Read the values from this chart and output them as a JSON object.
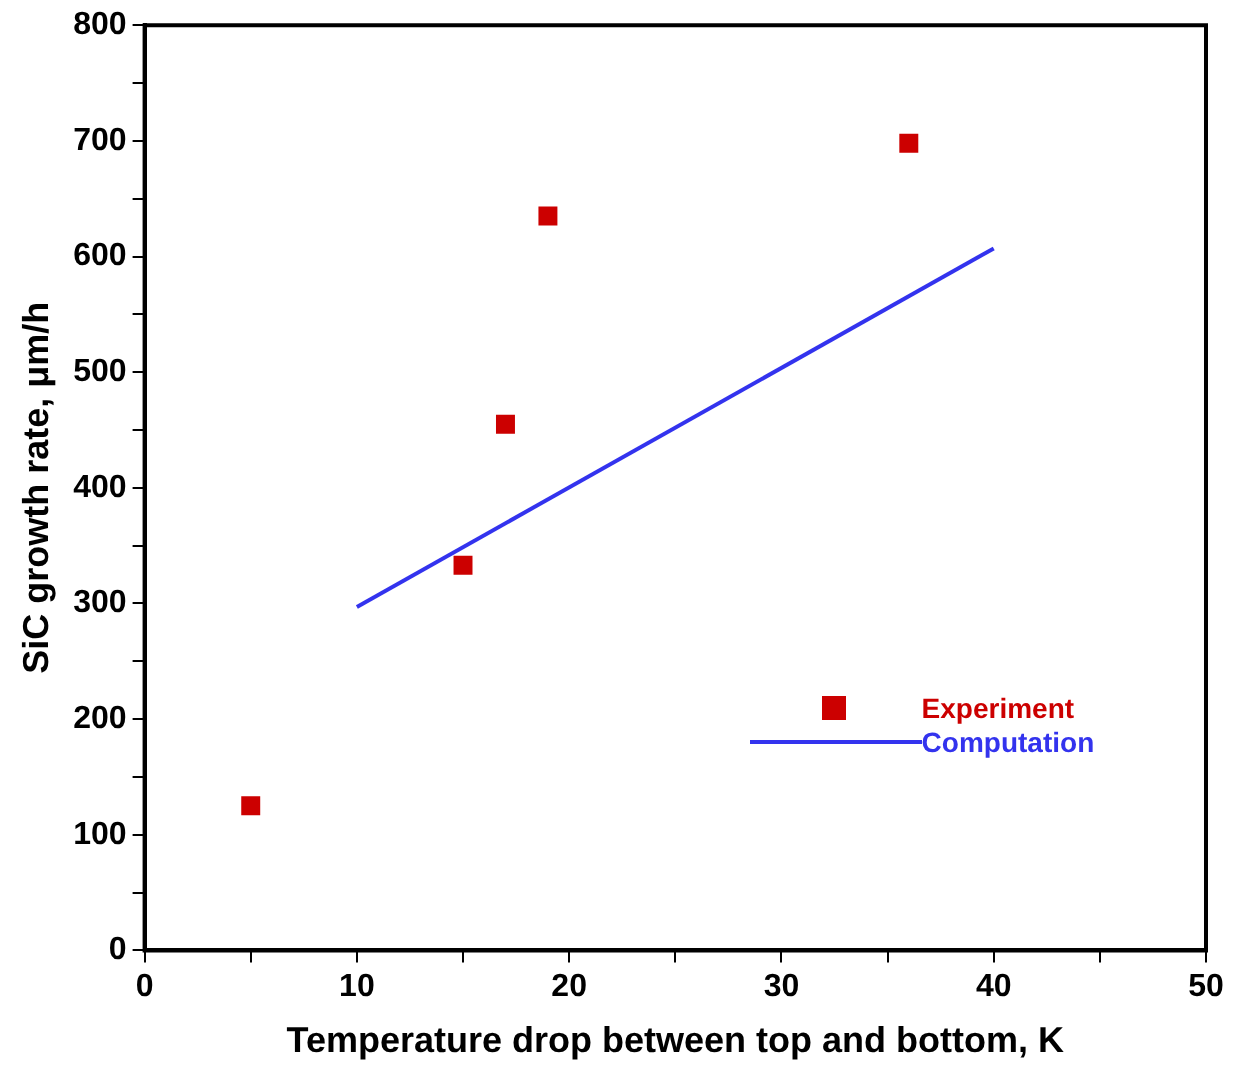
{
  "chart_data": {
    "type": "scatter",
    "xlabel": "Temperature drop between top and bottom, K",
    "ylabel": "SiC growth rate, μm/h",
    "xlim": [
      0,
      50
    ],
    "xticks": [
      0,
      {
        "value": 5,
        "label": null
      },
      10,
      {
        "value": 15,
        "label": null
      },
      20,
      {
        "value": 25,
        "label": null
      },
      30,
      {
        "value": 35,
        "label": null
      },
      40,
      {
        "value": 45,
        "label": null
      },
      50
    ],
    "ylim": [
      0,
      800
    ],
    "yticks": [
      0,
      {
        "value": 50,
        "label": null
      },
      100,
      {
        "value": 150,
        "label": null
      },
      200,
      {
        "value": 250,
        "label": null
      },
      300,
      {
        "value": 350,
        "label": null
      },
      400,
      {
        "value": 450,
        "label": null
      },
      500,
      {
        "value": 550,
        "label": null
      },
      600,
      {
        "value": 650,
        "label": null
      },
      700,
      {
        "value": 750,
        "label": null
      },
      800
    ],
    "grid": false,
    "legend": "right",
    "series": [
      {
        "name": "Experiment",
        "color": "#cc0000",
        "x": [
          5,
          15,
          17,
          19,
          36
        ],
        "values": [
          125,
          333,
          455,
          635,
          698
        ],
        "marker": "square"
      },
      {
        "name": "Computation",
        "type": "line",
        "color": "#3333ee",
        "x": [
          10,
          40
        ],
        "values": [
          297,
          607
        ],
        "marker": "none",
        "line_style": "solid"
      }
    ]
  }
}
